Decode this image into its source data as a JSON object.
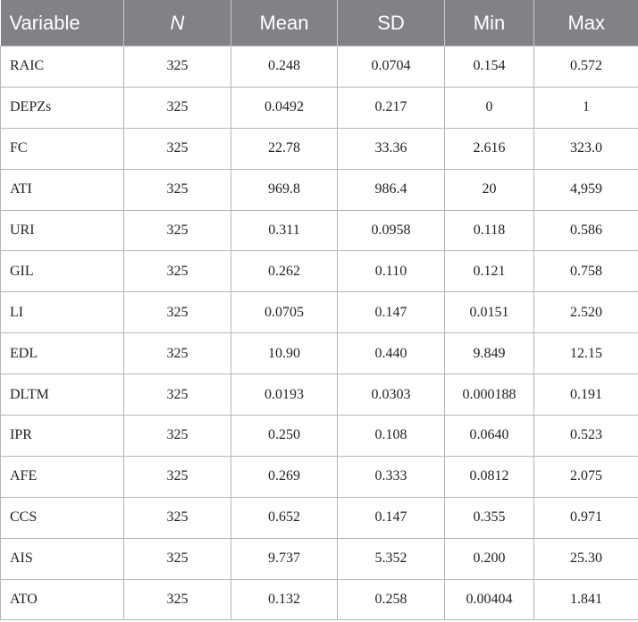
{
  "table": {
    "header": [
      "Variable",
      "N",
      "Mean",
      "SD",
      "Min",
      "Max"
    ],
    "rows": [
      [
        "RAIC",
        "325",
        "0.248",
        "0.0704",
        "0.154",
        "0.572"
      ],
      [
        "DEPZs",
        "325",
        "0.0492",
        "0.217",
        "0",
        "1"
      ],
      [
        "FC",
        "325",
        "22.78",
        "33.36",
        "2.616",
        "323.0"
      ],
      [
        "ATI",
        "325",
        "969.8",
        "986.4",
        "20",
        "4,959"
      ],
      [
        "URI",
        "325",
        "0.311",
        "0.0958",
        "0.118",
        "0.586"
      ],
      [
        "GIL",
        "325",
        "0.262",
        "0.110",
        "0.121",
        "0.758"
      ],
      [
        "LI",
        "325",
        "0.0705",
        "0.147",
        "0.0151",
        "2.520"
      ],
      [
        "EDL",
        "325",
        "10.90",
        "0.440",
        "9.849",
        "12.15"
      ],
      [
        "DLTM",
        "325",
        "0.0193",
        "0.0303",
        "0.000188",
        "0.191"
      ],
      [
        "IPR",
        "325",
        "0.250",
        "0.108",
        "0.0640",
        "0.523"
      ],
      [
        "AFE",
        "325",
        "0.269",
        "0.333",
        "0.0812",
        "2.075"
      ],
      [
        "CCS",
        "325",
        "0.652",
        "0.147",
        "0.355",
        "0.971"
      ],
      [
        "AIS",
        "325",
        "9.737",
        "5.352",
        "0.200",
        "25.30"
      ],
      [
        "ATO",
        "325",
        "0.132",
        "0.258",
        "0.00404",
        "1.841"
      ]
    ]
  }
}
